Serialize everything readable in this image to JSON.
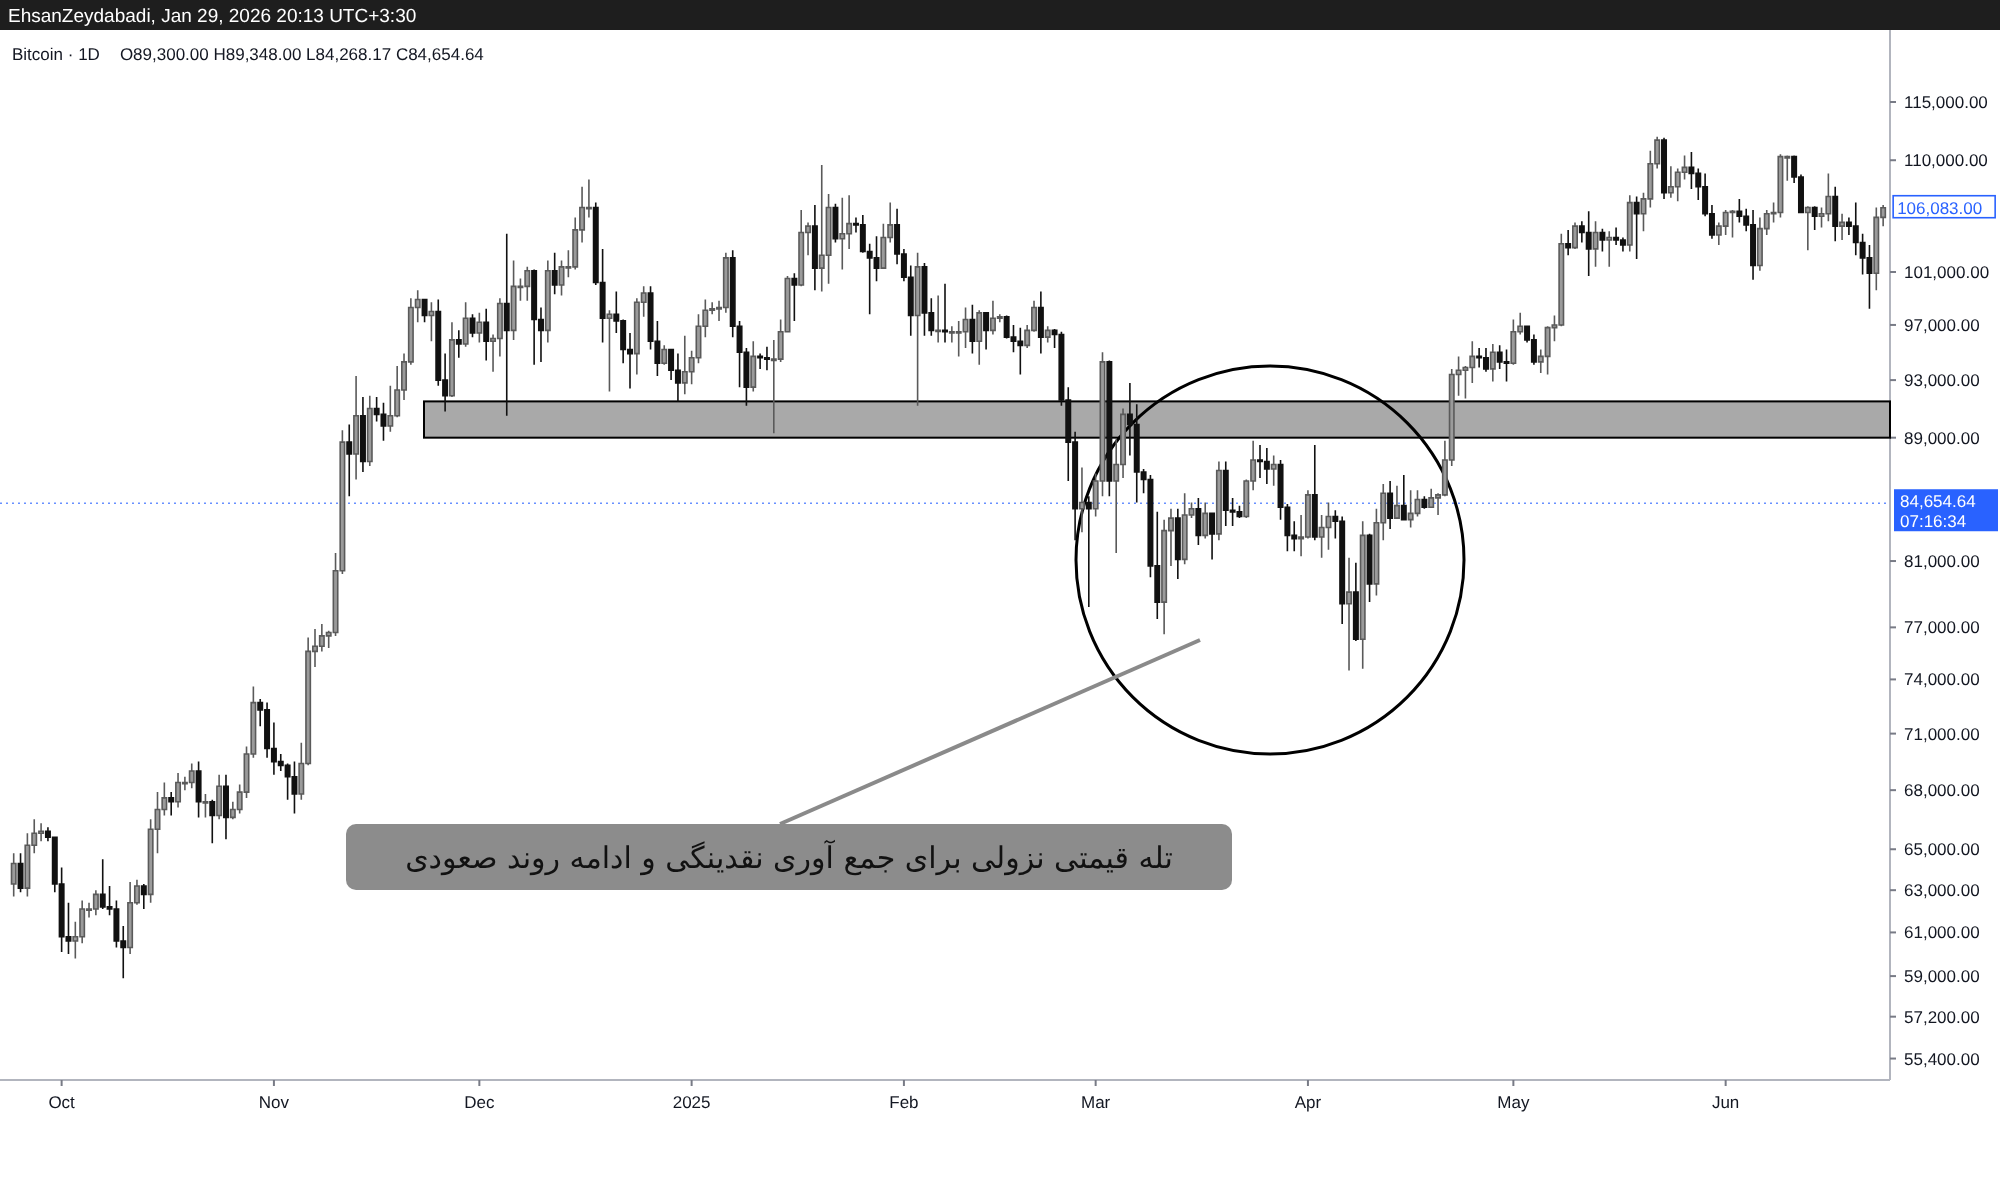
{
  "chart_data": {
    "type": "candlestick",
    "title": "Bitcoin · 1D",
    "log": true,
    "xlim": [
      "2024-09-22",
      "2025-06-25"
    ],
    "ylim": [
      54500,
      121500
    ],
    "xticks": [
      {
        "value": "2024-10-01",
        "label": "Oct"
      },
      {
        "value": "2024-11-01",
        "label": "Nov"
      },
      {
        "value": "2024-12-01",
        "label": "Dec"
      },
      {
        "value": "2025-01-01",
        "label": "2025"
      },
      {
        "value": "2025-02-01",
        "label": "Feb"
      },
      {
        "value": "2025-03-01",
        "label": "Mar"
      },
      {
        "value": "2025-04-01",
        "label": "Apr"
      },
      {
        "value": "2025-05-01",
        "label": "May"
      },
      {
        "value": "2025-06-01",
        "label": "Jun"
      }
    ],
    "yticks": [
      {
        "value": 55400,
        "label": "55,400.00"
      },
      {
        "value": 57200,
        "label": "57,200.00"
      },
      {
        "value": 59000,
        "label": "59,000.00"
      },
      {
        "value": 61000,
        "label": "61,000.00"
      },
      {
        "value": 63000,
        "label": "63,000.00"
      },
      {
        "value": 65000,
        "label": "65,000.00"
      },
      {
        "value": 68000,
        "label": "68,000.00"
      },
      {
        "value": 71000,
        "label": "71,000.00"
      },
      {
        "value": 74000,
        "label": "74,000.00"
      },
      {
        "value": 77000,
        "label": "77,000.00"
      },
      {
        "value": 81000,
        "label": "81,000.00"
      },
      {
        "value": 89000,
        "label": "89,000.00"
      },
      {
        "value": 93000,
        "label": "93,000.00"
      },
      {
        "value": 97000,
        "label": "97,000.00"
      },
      {
        "value": 101000,
        "label": "101,000.00"
      },
      {
        "value": 110000,
        "label": "110,000.00"
      },
      {
        "value": 115000,
        "label": "115,000.00"
      }
    ],
    "bands": [
      {
        "axis": "y",
        "from": 89000,
        "to": 91500,
        "color": "#a9a9a9"
      }
    ],
    "ref_lines": [
      {
        "axis": "y",
        "value": 84654.64,
        "label": "84,654.64",
        "color": "#2962ff",
        "line_style": "dotted"
      }
    ],
    "annotations": [
      "EhsanZeydabadi, Jan 29, 2026 20:13 UTC+3:30",
      "O89,300.00 H89,348.00 L84,268.17 C84,654.64",
      "تله قیمتی نزولی برای جمع آوری نقدینگی و ادامه روند صعودی",
      "07:16:34",
      {
        "text": "106,083.00",
        "x": "2025-06-24",
        "y": 106083
      }
    ],
    "x": [
      "2024-09-24",
      "2024-09-25",
      "2024-09-26",
      "2024-09-27",
      "2024-09-28",
      "2024-09-29",
      "2024-09-30",
      "2024-10-01",
      "2024-10-02",
      "2024-10-03",
      "2024-10-04",
      "2024-10-05",
      "2024-10-06",
      "2024-10-07",
      "2024-10-08",
      "2024-10-09",
      "2024-10-10",
      "2024-10-11",
      "2024-10-12",
      "2024-10-13",
      "2024-10-14",
      "2024-10-15",
      "2024-10-16",
      "2024-10-17",
      "2024-10-18",
      "2024-10-19",
      "2024-10-20",
      "2024-10-21",
      "2024-10-22",
      "2024-10-23",
      "2024-10-24",
      "2024-10-25",
      "2024-10-26",
      "2024-10-27",
      "2024-10-28",
      "2024-10-29",
      "2024-10-30",
      "2024-10-31",
      "2024-11-01",
      "2024-11-02",
      "2024-11-03",
      "2024-11-04",
      "2024-11-05",
      "2024-11-06",
      "2024-11-07",
      "2024-11-08",
      "2024-11-09",
      "2024-11-10",
      "2024-11-11",
      "2024-11-12",
      "2024-11-13",
      "2024-11-14",
      "2024-11-15",
      "2024-11-16",
      "2024-11-17",
      "2024-11-18",
      "2024-11-19",
      "2024-11-20",
      "2024-11-21",
      "2024-11-22",
      "2024-11-23",
      "2024-11-24",
      "2024-11-25",
      "2024-11-26",
      "2024-11-27",
      "2024-11-28",
      "2024-11-29",
      "2024-11-30",
      "2024-12-01",
      "2024-12-02",
      "2024-12-03",
      "2024-12-04",
      "2024-12-05",
      "2024-12-06",
      "2024-12-07",
      "2024-12-08",
      "2024-12-09",
      "2024-12-10",
      "2024-12-11",
      "2024-12-12",
      "2024-12-13",
      "2024-12-14",
      "2024-12-15",
      "2024-12-16",
      "2024-12-17",
      "2024-12-18",
      "2024-12-19",
      "2024-12-20",
      "2024-12-21",
      "2024-12-22",
      "2024-12-23",
      "2024-12-24",
      "2024-12-25",
      "2024-12-26",
      "2024-12-27",
      "2024-12-28",
      "2024-12-29",
      "2024-12-30",
      "2024-12-31",
      "2025-01-01",
      "2025-01-02",
      "2025-01-03",
      "2025-01-04",
      "2025-01-05",
      "2025-01-06",
      "2025-01-07",
      "2025-01-08",
      "2025-01-09",
      "2025-01-10",
      "2025-01-11",
      "2025-01-12",
      "2025-01-13",
      "2025-01-14",
      "2025-01-15",
      "2025-01-16",
      "2025-01-17",
      "2025-01-18",
      "2025-01-19",
      "2025-01-20",
      "2025-01-21",
      "2025-01-22",
      "2025-01-23",
      "2025-01-24",
      "2025-01-25",
      "2025-01-26",
      "2025-01-27",
      "2025-01-28",
      "2025-01-29",
      "2025-01-30",
      "2025-01-31",
      "2025-02-01",
      "2025-02-02",
      "2025-02-03",
      "2025-02-04",
      "2025-02-05",
      "2025-02-06",
      "2025-02-07",
      "2025-02-08",
      "2025-02-09",
      "2025-02-10",
      "2025-02-11",
      "2025-02-12",
      "2025-02-13",
      "2025-02-14",
      "2025-02-15",
      "2025-02-16",
      "2025-02-17",
      "2025-02-18",
      "2025-02-19",
      "2025-02-20",
      "2025-02-21",
      "2025-02-22",
      "2025-02-23",
      "2025-02-24",
      "2025-02-25",
      "2025-02-26",
      "2025-02-27",
      "2025-02-28",
      "2025-03-01",
      "2025-03-02",
      "2025-03-03",
      "2025-03-04",
      "2025-03-05",
      "2025-03-06",
      "2025-03-07",
      "2025-03-08",
      "2025-03-09",
      "2025-03-10",
      "2025-03-11",
      "2025-03-12",
      "2025-03-13",
      "2025-03-14",
      "2025-03-15",
      "2025-03-16",
      "2025-03-17",
      "2025-03-18",
      "2025-03-19",
      "2025-03-20",
      "2025-03-21",
      "2025-03-22",
      "2025-03-23",
      "2025-03-24",
      "2025-03-25",
      "2025-03-26",
      "2025-03-27",
      "2025-03-28",
      "2025-03-29",
      "2025-03-30",
      "2025-03-31",
      "2025-04-01",
      "2025-04-02",
      "2025-04-03",
      "2025-04-04",
      "2025-04-05",
      "2025-04-06",
      "2025-04-07",
      "2025-04-08",
      "2025-04-09",
      "2025-04-10",
      "2025-04-11",
      "2025-04-12",
      "2025-04-13",
      "2025-04-14",
      "2025-04-15",
      "2025-04-16",
      "2025-04-17",
      "2025-04-18",
      "2025-04-19",
      "2025-04-20",
      "2025-04-21",
      "2025-04-22",
      "2025-04-23",
      "2025-04-24",
      "2025-04-25",
      "2025-04-26",
      "2025-04-27",
      "2025-04-28",
      "2025-04-29",
      "2025-04-30",
      "2025-05-01",
      "2025-05-02",
      "2025-05-03",
      "2025-05-04",
      "2025-05-05",
      "2025-05-06",
      "2025-05-07",
      "2025-05-08",
      "2025-05-09",
      "2025-05-10",
      "2025-05-11",
      "2025-05-12",
      "2025-05-13",
      "2025-05-14",
      "2025-05-15",
      "2025-05-16",
      "2025-05-17",
      "2025-05-18",
      "2025-05-19",
      "2025-05-20",
      "2025-05-21",
      "2025-05-22",
      "2025-05-23",
      "2025-05-24",
      "2025-05-25",
      "2025-05-26",
      "2025-05-27",
      "2025-05-28",
      "2025-05-29",
      "2025-05-30",
      "2025-05-31",
      "2025-06-01",
      "2025-06-02",
      "2025-06-03",
      "2025-06-04",
      "2025-06-05",
      "2025-06-06",
      "2025-06-07",
      "2025-06-08",
      "2025-06-09",
      "2025-06-10",
      "2025-06-11",
      "2025-06-12",
      "2025-06-13",
      "2025-06-14",
      "2025-06-15",
      "2025-06-16",
      "2025-06-17",
      "2025-06-18",
      "2025-06-19",
      "2025-06-20",
      "2025-06-21",
      "2025-06-22",
      "2025-06-23",
      "2025-06-24"
    ],
    "ohlc": [
      [
        63300,
        64800,
        62700,
        64300
      ],
      [
        64300,
        64800,
        62900,
        63100
      ],
      [
        63100,
        65800,
        62700,
        65200
      ],
      [
        65200,
        66500,
        64800,
        65800
      ],
      [
        65800,
        66300,
        65400,
        65900
      ],
      [
        65900,
        66100,
        65400,
        65600
      ],
      [
        65600,
        65600,
        62900,
        63300
      ],
      [
        63300,
        64100,
        60100,
        60800
      ],
      [
        60800,
        62400,
        60000,
        60600
      ],
      [
        60600,
        61500,
        59800,
        60800
      ],
      [
        60800,
        62500,
        60500,
        62100
      ],
      [
        62100,
        62400,
        61700,
        62100
      ],
      [
        62100,
        63000,
        61800,
        62800
      ],
      [
        62800,
        64500,
        62100,
        62200
      ],
      [
        62200,
        63200,
        61800,
        62100
      ],
      [
        62100,
        62500,
        60300,
        60600
      ],
      [
        60600,
        61300,
        58900,
        60300
      ],
      [
        60300,
        63400,
        60000,
        62400
      ],
      [
        62400,
        63500,
        62300,
        63200
      ],
      [
        63200,
        63300,
        62100,
        62800
      ],
      [
        62800,
        66500,
        62400,
        66000
      ],
      [
        66000,
        67900,
        64800,
        67000
      ],
      [
        67000,
        68400,
        66700,
        67600
      ],
      [
        67600,
        67900,
        66700,
        67400
      ],
      [
        67400,
        68900,
        67100,
        68400
      ],
      [
        68400,
        68700,
        68000,
        68400
      ],
      [
        68400,
        69400,
        68100,
        69000
      ],
      [
        69000,
        69500,
        66600,
        67400
      ],
      [
        67400,
        67800,
        66600,
        67400
      ],
      [
        67400,
        67500,
        65300,
        66700
      ],
      [
        66700,
        68800,
        66500,
        68200
      ],
      [
        68200,
        68800,
        65500,
        66600
      ],
      [
        66600,
        67400,
        66500,
        67000
      ],
      [
        67000,
        68300,
        66800,
        67900
      ],
      [
        67900,
        70300,
        67600,
        69900
      ],
      [
        69900,
        73600,
        69700,
        72700
      ],
      [
        72700,
        72900,
        71400,
        72300
      ],
      [
        72300,
        72700,
        69700,
        70200
      ],
      [
        70200,
        71600,
        68800,
        69500
      ],
      [
        69500,
        69900,
        69000,
        69300
      ],
      [
        69300,
        69400,
        67500,
        68700
      ],
      [
        68700,
        69500,
        66800,
        67800
      ],
      [
        67800,
        70500,
        67500,
        69400
      ],
      [
        69400,
        76400,
        69300,
        75600
      ],
      [
        75600,
        76900,
        74700,
        75900
      ],
      [
        75900,
        77200,
        75600,
        76500
      ],
      [
        76500,
        76800,
        75800,
        76700
      ],
      [
        76700,
        81500,
        76500,
        80400
      ],
      [
        80400,
        89500,
        80200,
        88700
      ],
      [
        88700,
        89900,
        85100,
        87900
      ],
      [
        87900,
        93300,
        86200,
        90500
      ],
      [
        90500,
        91800,
        86700,
        87400
      ],
      [
        87400,
        91900,
        87100,
        91000
      ],
      [
        91000,
        91800,
        90100,
        90600
      ],
      [
        90600,
        91400,
        88800,
        89800
      ],
      [
        89800,
        92600,
        89400,
        90500
      ],
      [
        90500,
        94000,
        90400,
        92300
      ],
      [
        92300,
        94900,
        91600,
        94300
      ],
      [
        94300,
        99000,
        94100,
        98300
      ],
      [
        98300,
        99600,
        97200,
        98900
      ],
      [
        98900,
        98900,
        97200,
        97700
      ],
      [
        97700,
        98700,
        95800,
        98000
      ],
      [
        98000,
        98900,
        92600,
        93000
      ],
      [
        93000,
        94900,
        90800,
        91900
      ],
      [
        91900,
        97200,
        91800,
        95900
      ],
      [
        95900,
        96600,
        94600,
        95600
      ],
      [
        95600,
        98700,
        95400,
        97500
      ],
      [
        97500,
        97800,
        96100,
        96400
      ],
      [
        96400,
        97900,
        95700,
        97200
      ],
      [
        97200,
        98200,
        94400,
        95800
      ],
      [
        95800,
        96300,
        93600,
        96000
      ],
      [
        96000,
        99000,
        94700,
        98600
      ],
      [
        98600,
        104000,
        90500,
        96600
      ],
      [
        96600,
        101900,
        95900,
        99900
      ],
      [
        99900,
        100500,
        98800,
        99900
      ],
      [
        99900,
        101400,
        98800,
        101100
      ],
      [
        101100,
        101200,
        94100,
        97400
      ],
      [
        97400,
        98300,
        94300,
        96600
      ],
      [
        96600,
        101900,
        95700,
        101100
      ],
      [
        101100,
        102500,
        99300,
        100000
      ],
      [
        100000,
        101900,
        99200,
        101400
      ],
      [
        101400,
        102700,
        100600,
        101400
      ],
      [
        101400,
        105300,
        101200,
        104300
      ],
      [
        104300,
        107800,
        103300,
        106100
      ],
      [
        106100,
        108400,
        105300,
        106100
      ],
      [
        106100,
        106500,
        100000,
        100200
      ],
      [
        100200,
        102800,
        95700,
        97500
      ],
      [
        97500,
        98100,
        92200,
        97800
      ],
      [
        97800,
        99500,
        96400,
        97300
      ],
      [
        97300,
        97400,
        94200,
        95200
      ],
      [
        95200,
        96400,
        92400,
        94900
      ],
      [
        94900,
        99000,
        93400,
        98700
      ],
      [
        98700,
        99900,
        97600,
        99400
      ],
      [
        99400,
        99900,
        95200,
        95800
      ],
      [
        95800,
        97300,
        93300,
        94200
      ],
      [
        94200,
        95500,
        94100,
        95200
      ],
      [
        95200,
        95200,
        93000,
        93700
      ],
      [
        93700,
        94900,
        91500,
        92800
      ],
      [
        92800,
        96200,
        92000,
        93600
      ],
      [
        93600,
        95100,
        92700,
        94600
      ],
      [
        94600,
        97800,
        94200,
        96900
      ],
      [
        96900,
        98900,
        96100,
        98100
      ],
      [
        98100,
        98700,
        97800,
        98200
      ],
      [
        98200,
        98800,
        97300,
        98300
      ],
      [
        98300,
        102500,
        97900,
        102100
      ],
      [
        102100,
        102700,
        96100,
        96900
      ],
      [
        96900,
        97300,
        92500,
        95000
      ],
      [
        95000,
        95300,
        91200,
        92500
      ],
      [
        92500,
        95800,
        92200,
        94700
      ],
      [
        94700,
        94900,
        93800,
        94600
      ],
      [
        94600,
        95400,
        93700,
        94500
      ],
      [
        94500,
        95900,
        89300,
        94500
      ],
      [
        94500,
        97400,
        94300,
        96500
      ],
      [
        96500,
        100700,
        96500,
        100500
      ],
      [
        100500,
        100900,
        97300,
        100000
      ],
      [
        100000,
        105900,
        99900,
        104100
      ],
      [
        104100,
        104900,
        102300,
        104600
      ],
      [
        104600,
        106300,
        99600,
        101300
      ],
      [
        101300,
        109600,
        99500,
        102300
      ],
      [
        102300,
        107200,
        100100,
        106100
      ],
      [
        106100,
        106400,
        103300,
        103600
      ],
      [
        103600,
        106900,
        101200,
        104000
      ],
      [
        104000,
        107100,
        102800,
        104800
      ],
      [
        104800,
        105300,
        104100,
        104700
      ],
      [
        104700,
        105500,
        102500,
        102600
      ],
      [
        102600,
        103200,
        97800,
        102100
      ],
      [
        102100,
        103800,
        100300,
        101300
      ],
      [
        101300,
        104800,
        101300,
        103700
      ],
      [
        103700,
        106500,
        103300,
        104700
      ],
      [
        104700,
        106000,
        101600,
        102400
      ],
      [
        102400,
        102800,
        100300,
        100600
      ],
      [
        100600,
        101500,
        96200,
        97700
      ],
      [
        97700,
        102500,
        91200,
        101400
      ],
      [
        101400,
        101700,
        96200,
        97900
      ],
      [
        97900,
        99000,
        96200,
        96600
      ],
      [
        96600,
        99200,
        95700,
        96600
      ],
      [
        96600,
        100100,
        95700,
        96500
      ],
      [
        96500,
        96900,
        95700,
        96500
      ],
      [
        96500,
        97300,
        94700,
        96500
      ],
      [
        96500,
        98300,
        95300,
        97400
      ],
      [
        97400,
        98500,
        94900,
        95800
      ],
      [
        95800,
        98100,
        94100,
        97900
      ],
      [
        97900,
        97900,
        95200,
        96600
      ],
      [
        96600,
        98800,
        96300,
        97500
      ],
      [
        97500,
        97800,
        97200,
        97600
      ],
      [
        97600,
        97700,
        96000,
        96100
      ],
      [
        96100,
        97000,
        95000,
        95800
      ],
      [
        95800,
        96800,
        93400,
        95500
      ],
      [
        95500,
        97000,
        95300,
        96600
      ],
      [
        96600,
        98800,
        96500,
        98300
      ],
      [
        98300,
        99500,
        94900,
        96100
      ],
      [
        96100,
        96900,
        95700,
        96600
      ],
      [
        96600,
        96700,
        95300,
        96300
      ],
      [
        96300,
        96500,
        91200,
        91600
      ],
      [
        91600,
        92500,
        86100,
        88700
      ],
      [
        88700,
        89400,
        82300,
        84300
      ],
      [
        84300,
        87000,
        82800,
        84700
      ],
      [
        84700,
        85100,
        78200,
        84300
      ],
      [
        84300,
        86600,
        83800,
        86100
      ],
      [
        86100,
        95000,
        85100,
        94300
      ],
      [
        94300,
        94400,
        85100,
        86100
      ],
      [
        86100,
        88900,
        81500,
        87200
      ],
      [
        87200,
        91000,
        86300,
        90600
      ],
      [
        90600,
        92800,
        87800,
        89900
      ],
      [
        89900,
        91300,
        84700,
        86700
      ],
      [
        86700,
        86900,
        85300,
        86200
      ],
      [
        86200,
        86500,
        80000,
        80700
      ],
      [
        80700,
        84100,
        77500,
        78500
      ],
      [
        78500,
        83600,
        76600,
        82900
      ],
      [
        82900,
        84300,
        80700,
        83700
      ],
      [
        83700,
        84300,
        79900,
        81100
      ],
      [
        81100,
        85300,
        80800,
        83900
      ],
      [
        83900,
        84700,
        83700,
        84300
      ],
      [
        84300,
        85000,
        82000,
        82600
      ],
      [
        82600,
        84700,
        82400,
        84000
      ],
      [
        84000,
        84000,
        81100,
        82700
      ],
      [
        82700,
        87400,
        82300,
        86800
      ],
      [
        86800,
        87400,
        83200,
        84200
      ],
      [
        84200,
        85000,
        83200,
        84100
      ],
      [
        84100,
        84500,
        83700,
        83800
      ],
      [
        83800,
        86200,
        83700,
        86100
      ],
      [
        86100,
        88800,
        85500,
        87500
      ],
      [
        87500,
        88500,
        86300,
        87400
      ],
      [
        87400,
        88300,
        85900,
        86900
      ],
      [
        86900,
        87800,
        85800,
        87200
      ],
      [
        87200,
        87500,
        83600,
        84400
      ],
      [
        84400,
        84600,
        81600,
        82600
      ],
      [
        82600,
        83500,
        81600,
        82400
      ],
      [
        82400,
        83900,
        81300,
        82500
      ],
      [
        82500,
        85500,
        82400,
        85200
      ],
      [
        85200,
        88500,
        82300,
        82500
      ],
      [
        82500,
        83900,
        81200,
        83100
      ],
      [
        83100,
        84700,
        81700,
        83800
      ],
      [
        83800,
        84200,
        82400,
        83500
      ],
      [
        83500,
        83800,
        77200,
        78400
      ],
      [
        78400,
        81200,
        74500,
        79100
      ],
      [
        79100,
        80900,
        76200,
        76300
      ],
      [
        76300,
        83500,
        74600,
        82600
      ],
      [
        82600,
        82700,
        78500,
        79600
      ],
      [
        79600,
        84300,
        78900,
        83400
      ],
      [
        83400,
        85900,
        82300,
        85300
      ],
      [
        85300,
        86100,
        83000,
        83700
      ],
      [
        83700,
        85800,
        83700,
        84500
      ],
      [
        84500,
        86500,
        83600,
        83600
      ],
      [
        83600,
        85500,
        83100,
        84000
      ],
      [
        84000,
        85500,
        83800,
        84900
      ],
      [
        84900,
        85100,
        84300,
        84400
      ],
      [
        84400,
        85600,
        84400,
        85000
      ],
      [
        85000,
        85300,
        83900,
        85200
      ],
      [
        85200,
        88800,
        85100,
        87500
      ],
      [
        87500,
        93800,
        87100,
        93400
      ],
      [
        93400,
        94700,
        91900,
        93700
      ],
      [
        93700,
        94000,
        91700,
        93900
      ],
      [
        93900,
        95800,
        92800,
        94700
      ],
      [
        94700,
        95300,
        93900,
        94600
      ],
      [
        94600,
        95300,
        93600,
        93800
      ],
      [
        93800,
        95600,
        92900,
        95000
      ],
      [
        95000,
        95500,
        93800,
        94300
      ],
      [
        94300,
        95200,
        92900,
        94200
      ],
      [
        94200,
        97400,
        94100,
        96500
      ],
      [
        96500,
        97900,
        96300,
        96900
      ],
      [
        96900,
        96900,
        95700,
        95900
      ],
      [
        95900,
        96300,
        94100,
        94300
      ],
      [
        94300,
        95200,
        93500,
        94700
      ],
      [
        94700,
        96900,
        93400,
        96800
      ],
      [
        96800,
        97700,
        95800,
        97000
      ],
      [
        97000,
        104000,
        96900,
        103200
      ],
      [
        103200,
        104300,
        102300,
        102900
      ],
      [
        102900,
        104900,
        102800,
        104600
      ],
      [
        104600,
        105000,
        103300,
        104100
      ],
      [
        104100,
        105800,
        100700,
        102800
      ],
      [
        102800,
        105000,
        101400,
        104100
      ],
      [
        104100,
        104400,
        102600,
        103500
      ],
      [
        103500,
        104200,
        101400,
        103700
      ],
      [
        103700,
        104500,
        103100,
        103500
      ],
      [
        103500,
        103700,
        102600,
        103100
      ],
      [
        103100,
        107100,
        102600,
        106500
      ],
      [
        106500,
        107000,
        102000,
        105600
      ],
      [
        105600,
        107300,
        104200,
        106800
      ],
      [
        106800,
        110800,
        106100,
        109700
      ],
      [
        109700,
        112000,
        109300,
        111700
      ],
      [
        111700,
        111900,
        106800,
        107300
      ],
      [
        107300,
        109500,
        106900,
        107800
      ],
      [
        107800,
        109300,
        106600,
        109000
      ],
      [
        109000,
        110400,
        108400,
        109400
      ],
      [
        109400,
        110700,
        107600,
        108900
      ],
      [
        108900,
        109300,
        106700,
        107800
      ],
      [
        107800,
        108900,
        105400,
        105600
      ],
      [
        105600,
        106300,
        103600,
        103900
      ],
      [
        103900,
        104900,
        103100,
        104600
      ],
      [
        104600,
        105900,
        103900,
        105700
      ],
      [
        105700,
        105900,
        103700,
        105800
      ],
      [
        105800,
        106800,
        104900,
        105400
      ],
      [
        105400,
        106000,
        104200,
        104700
      ],
      [
        104700,
        105900,
        100400,
        101500
      ],
      [
        101500,
        105300,
        101100,
        104400
      ],
      [
        104400,
        105900,
        103900,
        105600
      ],
      [
        105600,
        106500,
        104900,
        105700
      ],
      [
        105700,
        110500,
        105300,
        110300
      ],
      [
        110300,
        110400,
        108300,
        110300
      ],
      [
        110300,
        110400,
        108100,
        108600
      ],
      [
        108600,
        108800,
        105700,
        105700
      ],
      [
        105700,
        106200,
        102700,
        106100
      ],
      [
        106100,
        106200,
        104300,
        105400
      ],
      [
        105400,
        106100,
        104500,
        105600
      ],
      [
        105600,
        108900,
        105000,
        107000
      ],
      [
        107000,
        107800,
        103400,
        104600
      ],
      [
        104600,
        105600,
        103500,
        104900
      ],
      [
        104900,
        105300,
        103900,
        104600
      ],
      [
        104600,
        106500,
        102300,
        103300
      ],
      [
        103300,
        104000,
        100800,
        102100
      ],
      [
        102100,
        103100,
        98200,
        100900
      ],
      [
        100900,
        106100,
        99600,
        105300
      ],
      [
        105300,
        106300,
        104600,
        106083
      ]
    ]
  }
}
